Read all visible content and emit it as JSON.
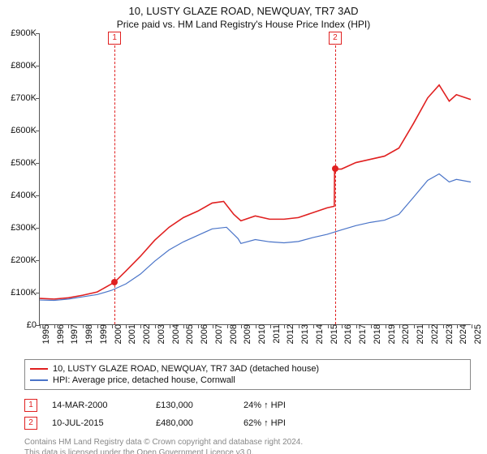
{
  "title": "10, LUSTY GLAZE ROAD, NEWQUAY, TR7 3AD",
  "subtitle": "Price paid vs. HM Land Registry's House Price Index (HPI)",
  "chart": {
    "type": "line",
    "background_color": "#ffffff",
    "axis_color": "#555555",
    "xlim": [
      1995,
      2025
    ],
    "ylim": [
      0,
      900000
    ],
    "y_ticks": [
      0,
      100000,
      200000,
      300000,
      400000,
      500000,
      600000,
      700000,
      800000,
      900000
    ],
    "y_tick_labels": [
      "£0",
      "£100K",
      "£200K",
      "£300K",
      "£400K",
      "£500K",
      "£600K",
      "£700K",
      "£800K",
      "£900K"
    ],
    "x_ticks": [
      1995,
      1996,
      1997,
      1998,
      1999,
      2000,
      2001,
      2002,
      2003,
      2004,
      2005,
      2006,
      2007,
      2008,
      2009,
      2010,
      2011,
      2012,
      2013,
      2014,
      2015,
      2016,
      2017,
      2018,
      2019,
      2020,
      2021,
      2022,
      2023,
      2024,
      2025
    ],
    "label_fontsize": 11,
    "vertical_markers": [
      {
        "label": "1",
        "x": 2000.2,
        "color": "#e02020"
      },
      {
        "label": "2",
        "x": 2015.52,
        "color": "#e02020"
      }
    ],
    "sale_points": [
      {
        "x": 2000.2,
        "y": 130000,
        "color": "#e02020"
      },
      {
        "x": 2015.52,
        "y": 480000,
        "color": "#e02020"
      }
    ],
    "series": [
      {
        "name": "10, LUSTY GLAZE ROAD, NEWQUAY, TR7 3AD (detached house)",
        "color": "#e02020",
        "line_width": 1.6,
        "points": [
          [
            1995,
            80000
          ],
          [
            1996,
            78000
          ],
          [
            1997,
            82000
          ],
          [
            1998,
            90000
          ],
          [
            1999,
            100000
          ],
          [
            2000.2,
            130000
          ],
          [
            2001,
            165000
          ],
          [
            2002,
            210000
          ],
          [
            2003,
            260000
          ],
          [
            2004,
            300000
          ],
          [
            2005,
            330000
          ],
          [
            2006,
            350000
          ],
          [
            2007,
            375000
          ],
          [
            2007.8,
            380000
          ],
          [
            2008.5,
            340000
          ],
          [
            2009,
            320000
          ],
          [
            2010,
            335000
          ],
          [
            2011,
            325000
          ],
          [
            2012,
            325000
          ],
          [
            2013,
            330000
          ],
          [
            2014,
            345000
          ],
          [
            2015,
            360000
          ],
          [
            2015.5,
            365000
          ],
          [
            2015.52,
            480000
          ],
          [
            2016,
            480000
          ],
          [
            2017,
            500000
          ],
          [
            2018,
            510000
          ],
          [
            2019,
            520000
          ],
          [
            2020,
            545000
          ],
          [
            2021,
            620000
          ],
          [
            2022,
            700000
          ],
          [
            2022.8,
            740000
          ],
          [
            2023.5,
            690000
          ],
          [
            2024,
            710000
          ],
          [
            2025,
            695000
          ]
        ]
      },
      {
        "name": "HPI: Average price, detached house, Cornwall",
        "color": "#4a74c8",
        "line_width": 1.2,
        "points": [
          [
            1995,
            75000
          ],
          [
            1996,
            74000
          ],
          [
            1997,
            78000
          ],
          [
            1998,
            85000
          ],
          [
            1999,
            92000
          ],
          [
            2000,
            105000
          ],
          [
            2001,
            125000
          ],
          [
            2002,
            155000
          ],
          [
            2003,
            195000
          ],
          [
            2004,
            230000
          ],
          [
            2005,
            255000
          ],
          [
            2006,
            275000
          ],
          [
            2007,
            295000
          ],
          [
            2008,
            300000
          ],
          [
            2008.8,
            265000
          ],
          [
            2009,
            250000
          ],
          [
            2010,
            262000
          ],
          [
            2011,
            255000
          ],
          [
            2012,
            252000
          ],
          [
            2013,
            256000
          ],
          [
            2014,
            268000
          ],
          [
            2015,
            278000
          ],
          [
            2016,
            292000
          ],
          [
            2017,
            305000
          ],
          [
            2018,
            315000
          ],
          [
            2019,
            322000
          ],
          [
            2020,
            340000
          ],
          [
            2021,
            392000
          ],
          [
            2022,
            445000
          ],
          [
            2022.8,
            465000
          ],
          [
            2023.5,
            440000
          ],
          [
            2024,
            448000
          ],
          [
            2025,
            440000
          ]
        ]
      }
    ]
  },
  "legend_items": [
    {
      "color": "#e02020",
      "label": "10, LUSTY GLAZE ROAD, NEWQUAY, TR7 3AD (detached house)"
    },
    {
      "color": "#4a74c8",
      "label": "HPI: Average price, detached house, Cornwall"
    }
  ],
  "sales": [
    {
      "idx": "1",
      "date": "14-MAR-2000",
      "price": "£130,000",
      "pct": "24% ↑ HPI"
    },
    {
      "idx": "2",
      "date": "10-JUL-2015",
      "price": "£480,000",
      "pct": "62% ↑ HPI"
    }
  ],
  "footnote_line1": "Contains HM Land Registry data © Crown copyright and database right 2024.",
  "footnote_line2": "This data is licensed under the Open Government Licence v3.0."
}
